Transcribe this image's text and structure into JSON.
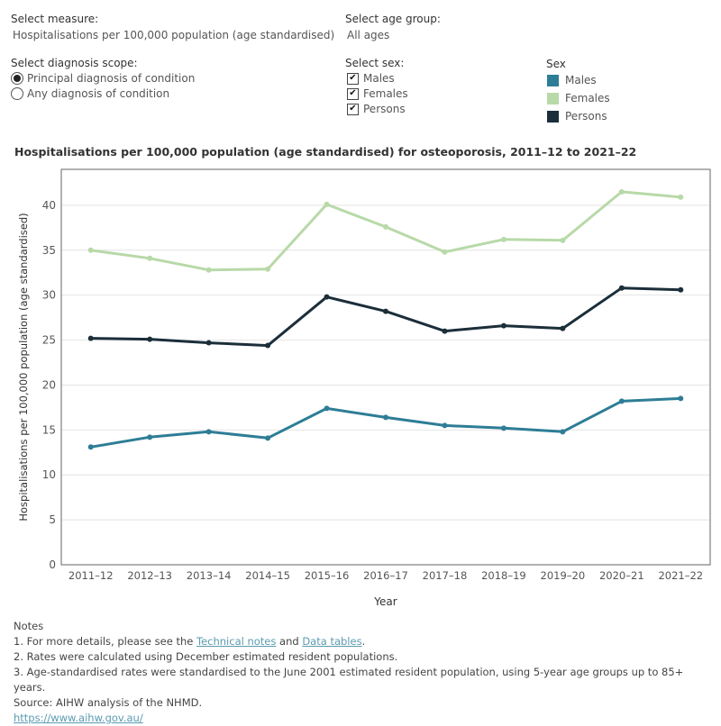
{
  "controls": {
    "measure": {
      "label": "Select measure:",
      "value": "Hospitalisations per 100,000 population (age standardised)"
    },
    "age_group": {
      "label": "Select age group:",
      "value": "All ages"
    },
    "scope": {
      "label": "Select diagnosis scope:",
      "options": [
        {
          "label": "Principal diagnosis of condition",
          "selected": true
        },
        {
          "label": "Any diagnosis of condition",
          "selected": false
        }
      ]
    },
    "sex": {
      "label": "Select sex:",
      "options": [
        {
          "label": "Males",
          "checked": true
        },
        {
          "label": "Females",
          "checked": true
        },
        {
          "label": "Persons",
          "checked": true
        }
      ]
    }
  },
  "legend": {
    "title": "Sex",
    "items": [
      {
        "label": "Males",
        "color": "#2e7d96"
      },
      {
        "label": "Females",
        "color": "#b8d9a8"
      },
      {
        "label": "Persons",
        "color": "#1b2e3a"
      }
    ]
  },
  "chart_data": {
    "type": "line",
    "title": "Hospitalisations per 100,000 population (age standardised) for osteoporosis, 2011–12 to 2021–22",
    "xlabel": "Year",
    "ylabel": "Hospitalisations per 100,000 population (age standardised)",
    "ylim": [
      0,
      44
    ],
    "yticks": [
      0,
      5,
      10,
      15,
      20,
      25,
      30,
      35,
      40
    ],
    "grid": true,
    "legend_position": "top-right",
    "categories": [
      "2011–12",
      "2012–13",
      "2013–14",
      "2014–15",
      "2015–16",
      "2016–17",
      "2017–18",
      "2018–19",
      "2019–20",
      "2020–21",
      "2021–22"
    ],
    "series": [
      {
        "name": "Females",
        "color": "#b8d9a8",
        "values": [
          35.0,
          34.1,
          32.8,
          32.9,
          40.1,
          37.6,
          34.8,
          36.2,
          36.1,
          41.5,
          40.9
        ]
      },
      {
        "name": "Persons",
        "color": "#1b2e3a",
        "values": [
          25.2,
          25.1,
          24.7,
          24.4,
          29.8,
          28.2,
          26.0,
          26.6,
          26.3,
          30.8,
          30.6
        ]
      },
      {
        "name": "Males",
        "color": "#2e7d96",
        "values": [
          13.1,
          14.2,
          14.8,
          14.1,
          17.4,
          16.4,
          15.5,
          15.2,
          14.8,
          18.2,
          18.5
        ]
      }
    ]
  },
  "notes": {
    "heading": "Notes",
    "line1_prefix": "1. For more details, please see the ",
    "line1_link1": "Technical notes",
    "line1_mid": " and ",
    "line1_link2": "Data tables",
    "line1_suffix": ".",
    "line2": "2. Rates were calculated using December estimated resident populations.",
    "line3": "3. Age-standardised rates were standardised to the June 2001 estimated resident population, using 5-year age groups up to 85+ years.",
    "source": "Source: AIHW analysis of the NHMD.",
    "url": "https://www.aihw.gov.au/"
  }
}
